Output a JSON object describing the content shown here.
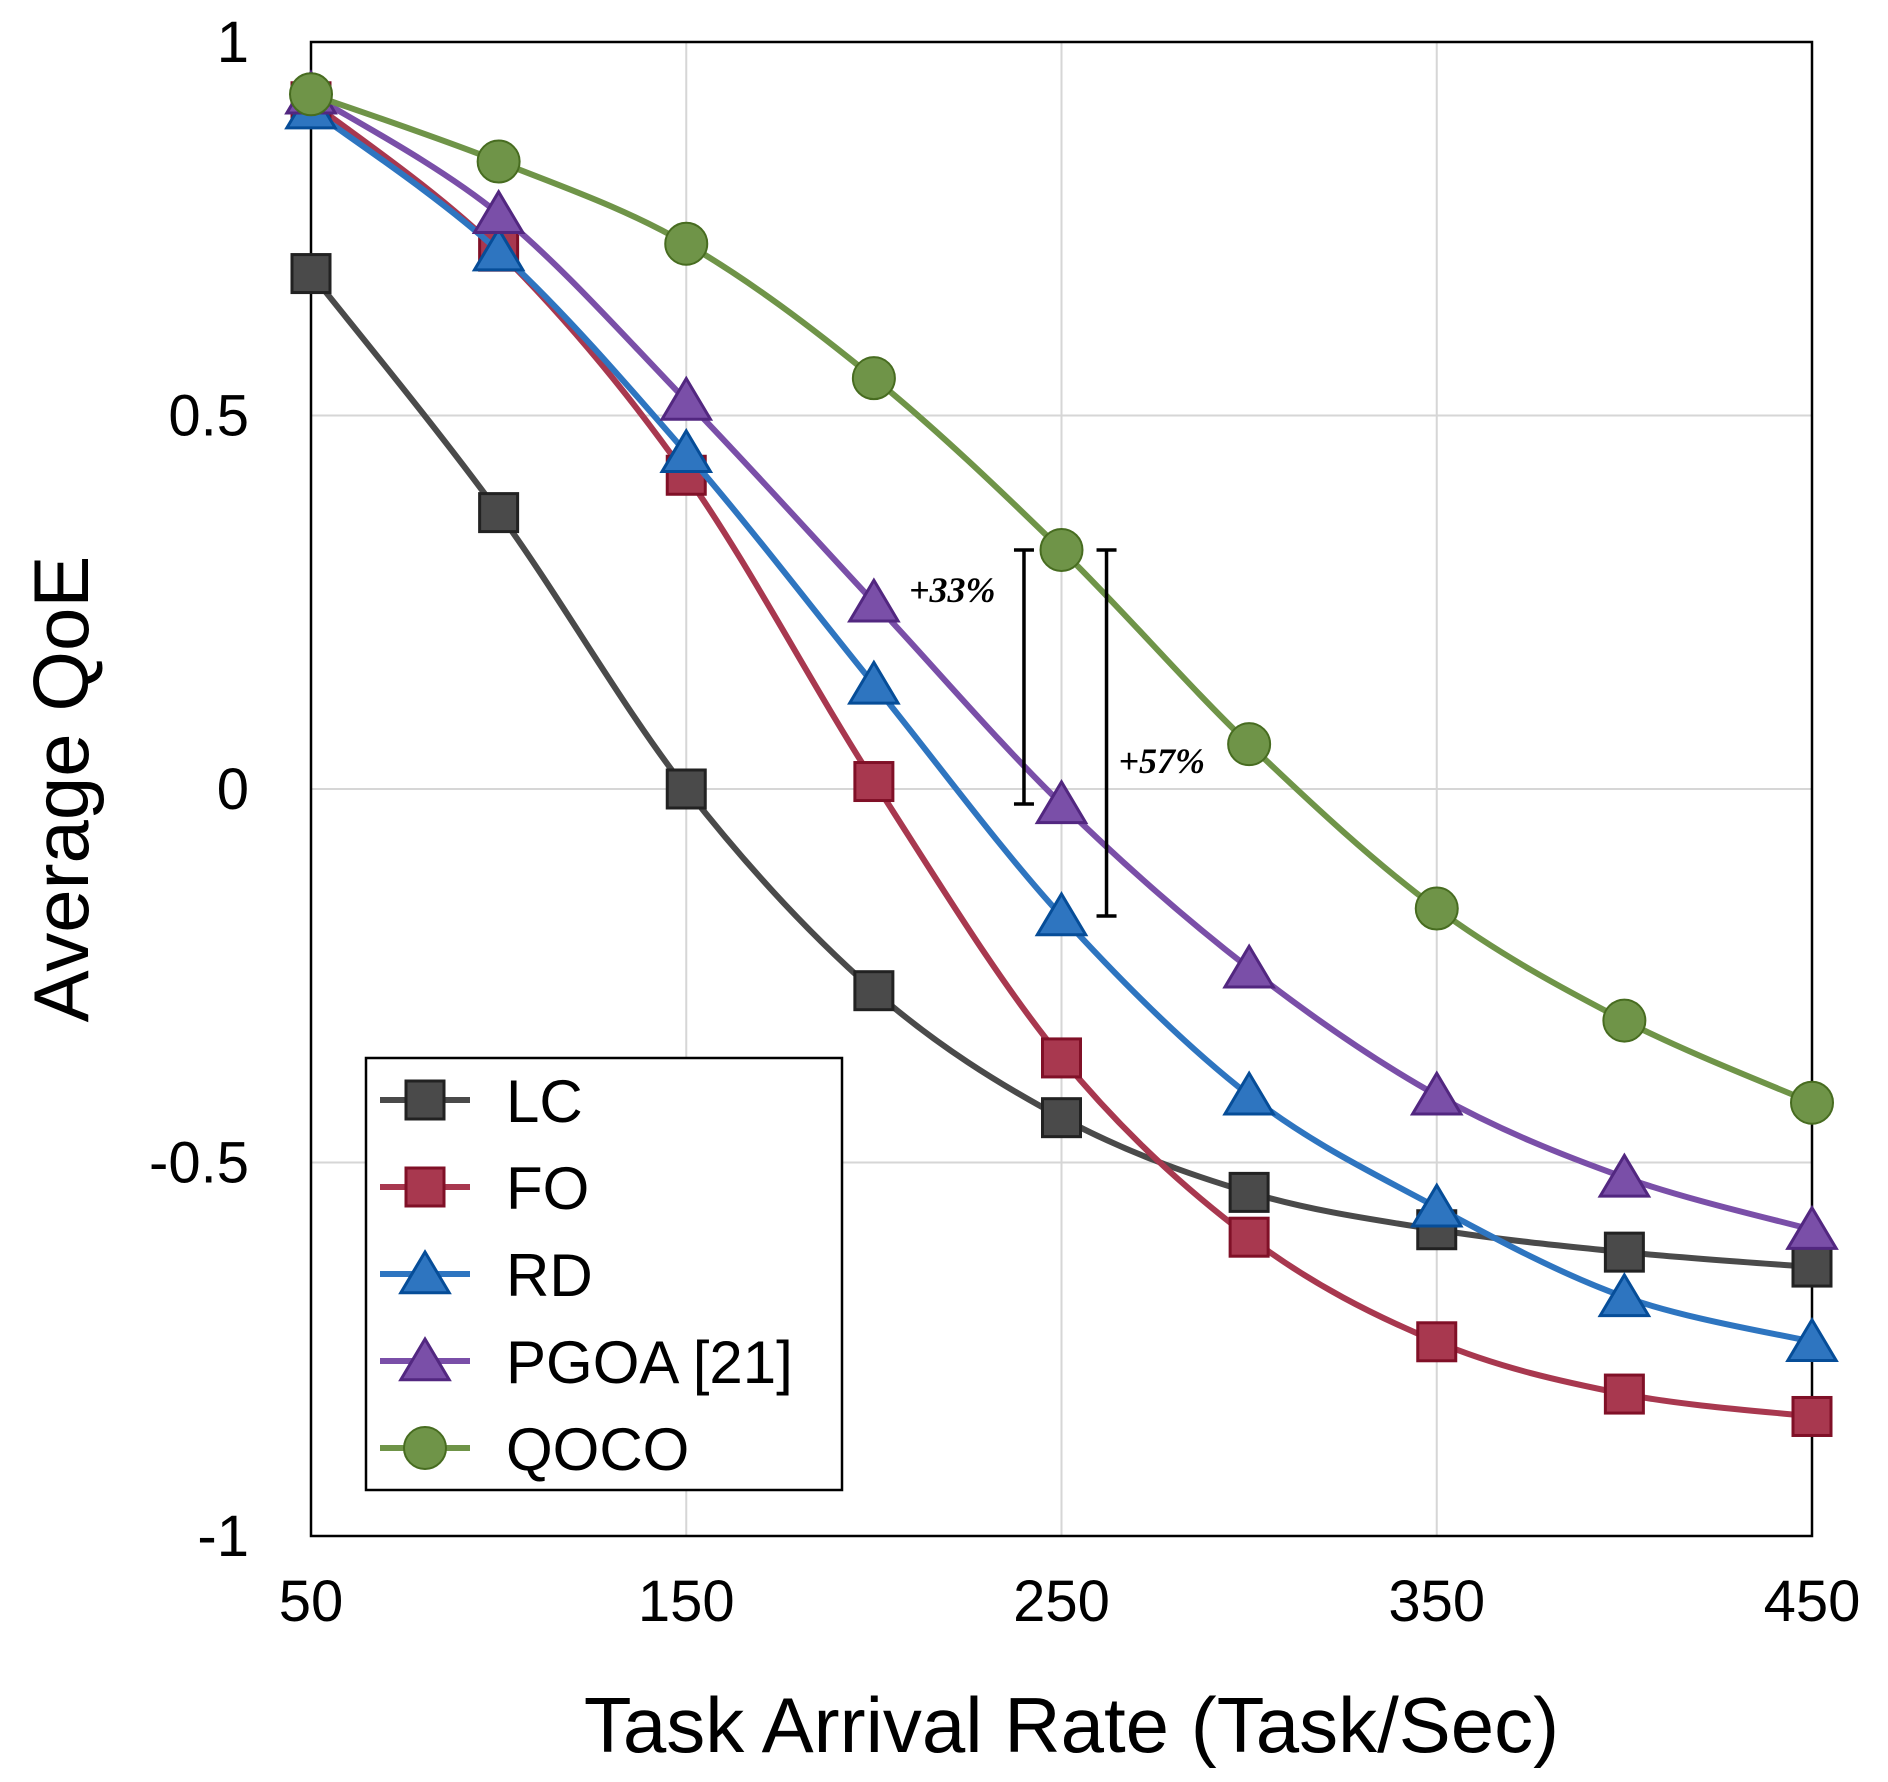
{
  "chart_data": {
    "type": "line",
    "title": "",
    "xlabel": "Task Arrival Rate (Task/Sec)",
    "ylabel": "Average QoE",
    "x": [
      50,
      100,
      150,
      200,
      250,
      300,
      350,
      400,
      450
    ],
    "xlim": [
      50,
      450
    ],
    "ylim": [
      -1,
      1
    ],
    "xticks": [
      50,
      150,
      250,
      350,
      450
    ],
    "xtick_labels": [
      "50",
      "150",
      "250",
      "350",
      "450"
    ],
    "yticks": [
      1,
      0.5,
      0,
      -0.5,
      -1
    ],
    "ytick_labels": [
      "1",
      "0.5",
      "0",
      "-0.5",
      "-1"
    ],
    "grid": true,
    "legend_position": "bottom-left",
    "series": [
      {
        "name": "LC",
        "color": "#4a4a4a",
        "marker": "square",
        "values": [
          0.69,
          0.37,
          0.0,
          -0.27,
          -0.44,
          -0.54,
          -0.59,
          -0.62,
          -0.64
        ]
      },
      {
        "name": "FO",
        "color": "#a8384f",
        "marker": "square",
        "values": [
          0.92,
          0.72,
          0.42,
          0.01,
          -0.36,
          -0.6,
          -0.74,
          -0.81,
          -0.84
        ]
      },
      {
        "name": "RD",
        "color": "#2e75c0",
        "marker": "triangle",
        "values": [
          0.91,
          0.72,
          0.45,
          0.14,
          -0.17,
          -0.41,
          -0.56,
          -0.68,
          -0.74
        ]
      },
      {
        "name": "PGOA [21]",
        "color": "#7a4fa8",
        "marker": "triangle",
        "values": [
          0.93,
          0.77,
          0.52,
          0.25,
          -0.02,
          -0.24,
          -0.41,
          -0.52,
          -0.59
        ]
      },
      {
        "name": "QOCO",
        "color": "#6f9448",
        "marker": "circle",
        "values": [
          0.93,
          0.84,
          0.73,
          0.55,
          0.32,
          0.06,
          -0.16,
          -0.31,
          -0.42
        ]
      }
    ],
    "annotations": [
      {
        "text": "+33%",
        "x": 240,
        "y_from": -0.02,
        "y_to": 0.32
      },
      {
        "text": "+57%",
        "x": 262,
        "y_from": -0.17,
        "y_to": 0.32
      }
    ]
  }
}
